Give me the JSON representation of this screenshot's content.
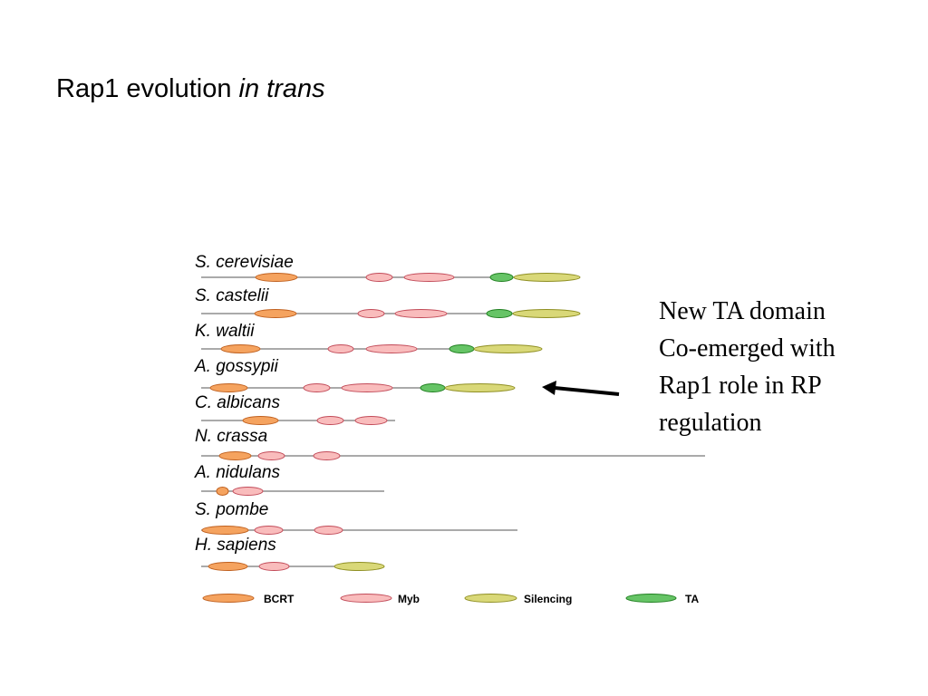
{
  "title": {
    "text": "Rap1 evolution",
    "emphasis": "in trans"
  },
  "species": [
    "S. cerevisiae",
    "S. castelii",
    "K. waltii",
    "A. gossypii",
    "C. albicans",
    "N. crassa",
    "A. nidulans",
    "S. pombe",
    "H. sapiens"
  ],
  "legend": [
    "BCRT",
    "Myb",
    "Silencing",
    "TA"
  ],
  "annotation": [
    "New TA domain",
    "Co-emerged with",
    "Rap1 role in RP",
    "regulation"
  ]
}
